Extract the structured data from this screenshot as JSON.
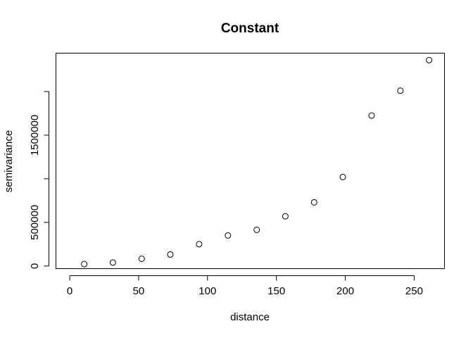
{
  "chart_data": {
    "type": "scatter",
    "title": "Constant",
    "xlabel": "distance",
    "ylabel": "semivariance",
    "xlim": [
      -10,
      272
    ],
    "ylim": [
      -30000,
      2440000
    ],
    "x_ticks": [
      0,
      50,
      100,
      150,
      200,
      250
    ],
    "x_tick_labels": [
      "0",
      "50",
      "100",
      "150",
      "200",
      "250"
    ],
    "y_ticks": [
      0,
      500000,
      1000000,
      1500000,
      2000000
    ],
    "y_tick_labels": [
      "0",
      "500000",
      "",
      "1500000",
      ""
    ],
    "grid": false,
    "legend": "none",
    "marker": "open-circle",
    "points": [
      {
        "x": 10.5,
        "y": 22000
      },
      {
        "x": 31.3,
        "y": 40000
      },
      {
        "x": 52.2,
        "y": 83000
      },
      {
        "x": 73.0,
        "y": 132000
      },
      {
        "x": 93.9,
        "y": 250000
      },
      {
        "x": 114.8,
        "y": 350000
      },
      {
        "x": 135.7,
        "y": 415000
      },
      {
        "x": 156.5,
        "y": 570000
      },
      {
        "x": 177.4,
        "y": 730000
      },
      {
        "x": 198.2,
        "y": 1020000
      },
      {
        "x": 219.1,
        "y": 1725000
      },
      {
        "x": 240.0,
        "y": 2010000
      },
      {
        "x": 260.8,
        "y": 2360000
      }
    ]
  }
}
